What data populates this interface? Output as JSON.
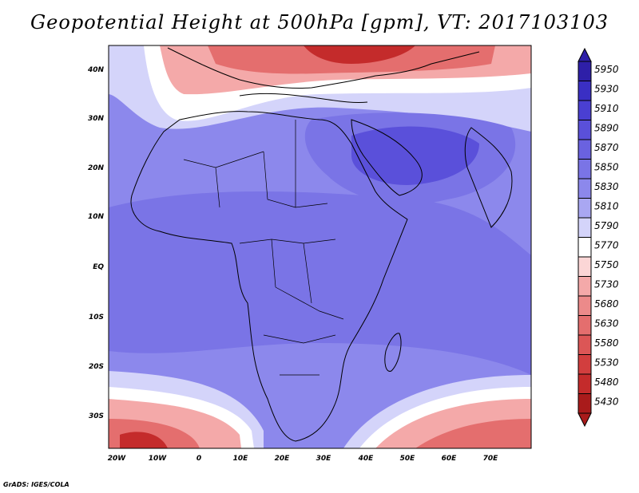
{
  "title": "Geopotential Height at 500hPa [gpm], VT: 2017103103",
  "credit": "GrADS: IGES/COLA",
  "lat_ticks": [
    "40N",
    "30N",
    "20N",
    "10N",
    "EQ",
    "10S",
    "20S",
    "30S"
  ],
  "lon_ticks": [
    "20W",
    "10W",
    "0",
    "10E",
    "20E",
    "30E",
    "40E",
    "50E",
    "60E",
    "70E"
  ],
  "colorbar": {
    "levels": [
      "5950",
      "5930",
      "5910",
      "5890",
      "5870",
      "5850",
      "5830",
      "5810",
      "5790",
      "5770",
      "5750",
      "5730",
      "5680",
      "5630",
      "5580",
      "5530",
      "5480",
      "5430"
    ],
    "colors": [
      "#2e1fa8",
      "#3a2fc4",
      "#4a3fd2",
      "#5a50da",
      "#6a62e0",
      "#7a74e6",
      "#8c88ec",
      "#a9a7f2",
      "#d4d4fa",
      "#ffffff",
      "#fbd6d6",
      "#f4a9a9",
      "#ec8a8a",
      "#e46e6e",
      "#dc5656",
      "#d23e3e",
      "#c42b2b",
      "#a91b1b"
    ]
  },
  "map_colors": {
    "background": "#8c88ec",
    "deep_blue": "#5a50da",
    "mid_blue": "#7a74e6",
    "light_blue": "#d4d4fa",
    "white": "#ffffff",
    "light_red": "#f4a9a9",
    "mid_red": "#e46e6e",
    "deep_red": "#c42b2b"
  }
}
